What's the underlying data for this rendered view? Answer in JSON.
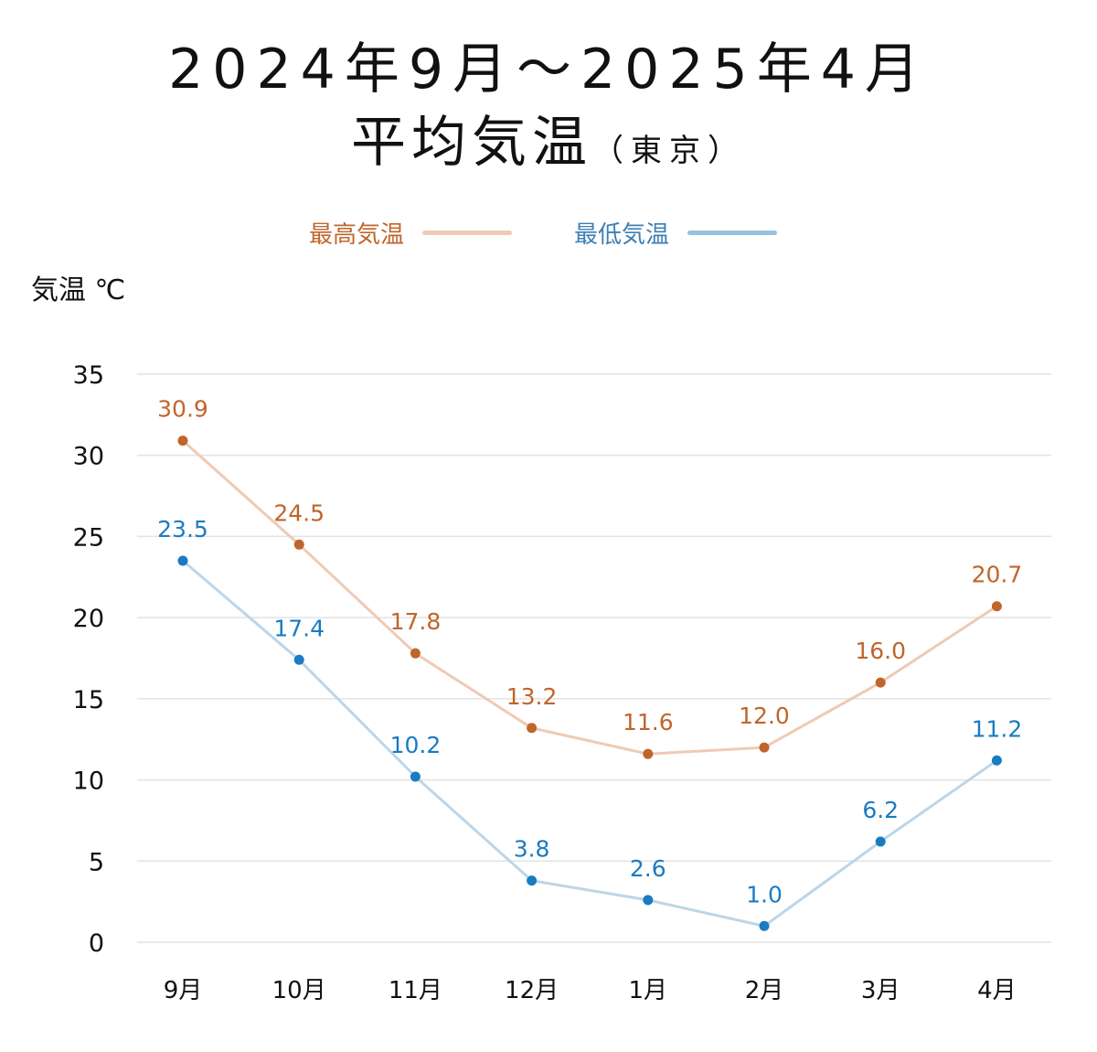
{
  "title": {
    "line1": "2024年9月〜2025年4月",
    "line2": "平均気温",
    "line2_sub": "（東京）"
  },
  "legend": {
    "items": [
      {
        "label": "最高気温",
        "color": "#c0652b",
        "line_color": "#efcab4"
      },
      {
        "label": "最低気温",
        "color": "#3e7fb5",
        "line_color": "#9ac1dd"
      }
    ]
  },
  "ylabel": "気温 ℃",
  "chart_data": {
    "type": "line",
    "title": "2024年9月〜2025年4月 平均気温（東京）",
    "xlabel": "",
    "ylabel": "気温 ℃",
    "ylim": [
      0,
      35
    ],
    "yticks": [
      0,
      5,
      10,
      15,
      20,
      25,
      30,
      35
    ],
    "grid": true,
    "legend_position": "top-center",
    "categories": [
      "9月",
      "10月",
      "11月",
      "12月",
      "1月",
      "2月",
      "3月",
      "4月"
    ],
    "series": [
      {
        "name": "最高気温",
        "values": [
          30.9,
          24.5,
          17.8,
          13.2,
          11.6,
          12.0,
          16.0,
          20.7
        ],
        "labels": [
          "30.9",
          "24.5",
          "17.8",
          "13.2",
          "11.6",
          "12.0",
          "16.0",
          "20.7"
        ],
        "line_color": "#efcab4",
        "marker_color": "#c0652b",
        "label_color": "#c0652b"
      },
      {
        "name": "最低気温",
        "values": [
          23.5,
          17.4,
          10.2,
          3.8,
          2.6,
          1.0,
          6.2,
          11.2
        ],
        "labels": [
          "23.5",
          "17.4",
          "10.2",
          "3.8",
          "2.6",
          "1.0",
          "6.2",
          "11.2"
        ],
        "line_color": "#bcd6e8",
        "marker_color": "#1a7bc2",
        "label_color": "#1a7bc2"
      }
    ]
  }
}
